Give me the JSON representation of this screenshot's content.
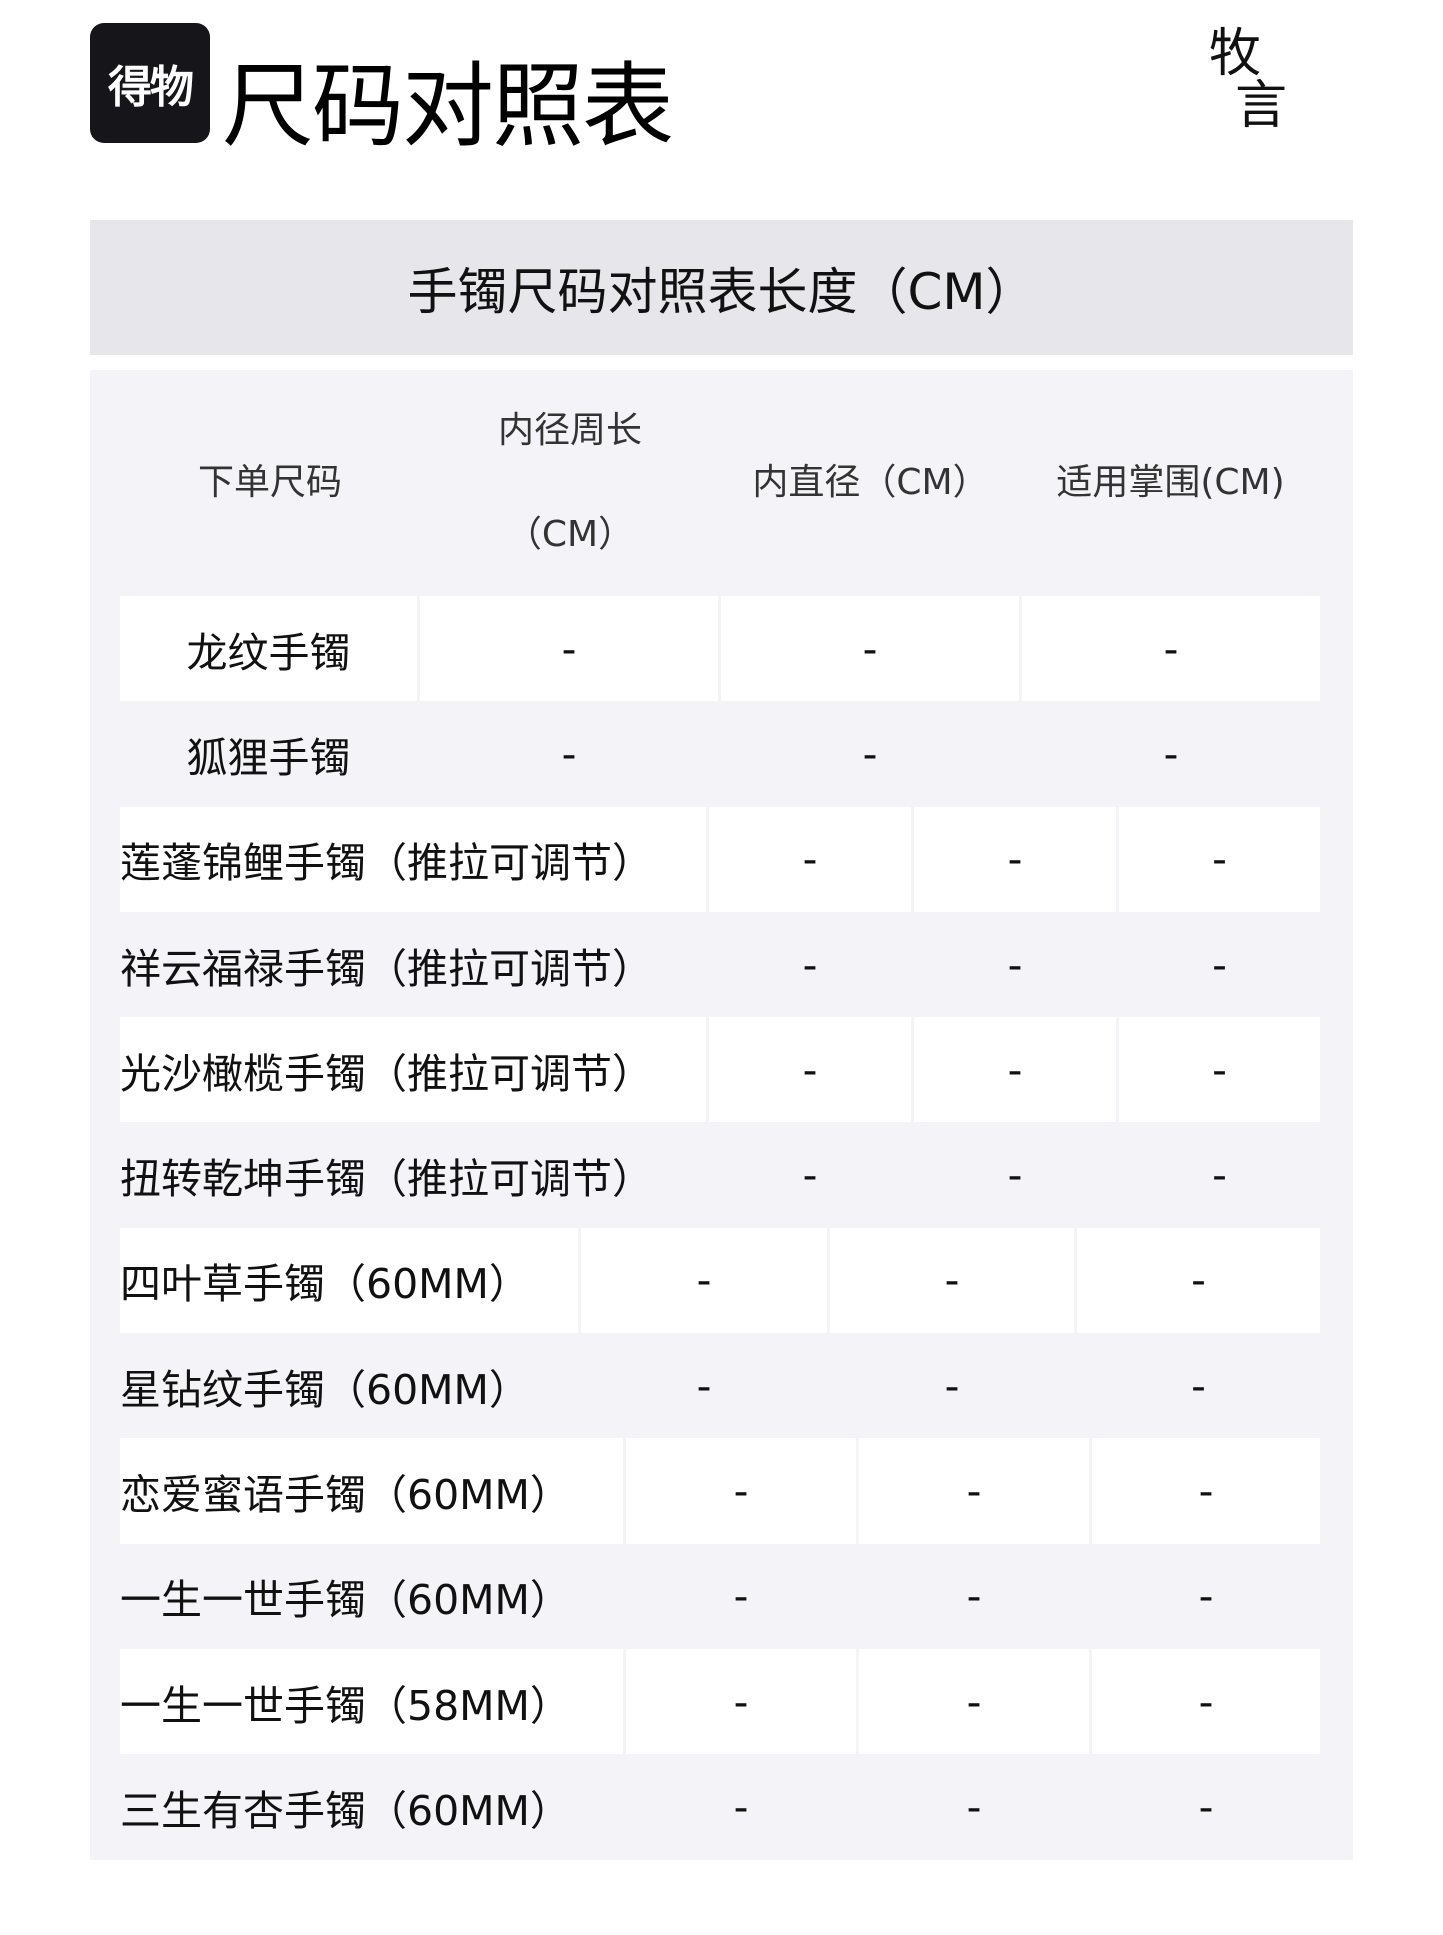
{
  "header": {
    "logo_text": "得物",
    "title": "尺码对照表",
    "signature": [
      "牧",
      "言"
    ]
  },
  "section_title": "手镯尺码对照表长度（CM）",
  "table": {
    "columns": [
      "下单尺码",
      "内径周长\n（CM）",
      "内直径（CM）",
      "适用掌围(CM)"
    ],
    "rows": [
      {
        "name": "龙纹手镯",
        "values": [
          "-",
          "-",
          "-"
        ]
      },
      {
        "name": "狐狸手镯",
        "values": [
          "-",
          "-",
          "-"
        ]
      },
      {
        "name": "莲蓬锦鲤手镯（推拉可调节）",
        "values": [
          "-",
          "-",
          "-"
        ]
      },
      {
        "name": "祥云福禄手镯（推拉可调节）",
        "values": [
          "-",
          "-",
          "-"
        ]
      },
      {
        "name": "光沙橄榄手镯（推拉可调节）",
        "values": [
          "-",
          "-",
          "-"
        ]
      },
      {
        "name": "扭转乾坤手镯（推拉可调节）",
        "values": [
          "-",
          "-",
          "-"
        ]
      },
      {
        "name": "四叶草手镯（60MM）",
        "values": [
          "-",
          "-",
          "-"
        ]
      },
      {
        "name": "星钻纹手镯（60MM）",
        "values": [
          "-",
          "-",
          "-"
        ]
      },
      {
        "name": "恋爱蜜语手镯（60MM）",
        "values": [
          "-",
          "-",
          "-"
        ]
      },
      {
        "name": "一生一世手镯（60MM）",
        "values": [
          "-",
          "-",
          "-"
        ]
      },
      {
        "name": "一生一世手镯（58MM）",
        "values": [
          "-",
          "-",
          "-"
        ]
      },
      {
        "name": "三生有杏手镯（60MM）",
        "values": [
          "-",
          "-",
          "-"
        ]
      }
    ]
  }
}
